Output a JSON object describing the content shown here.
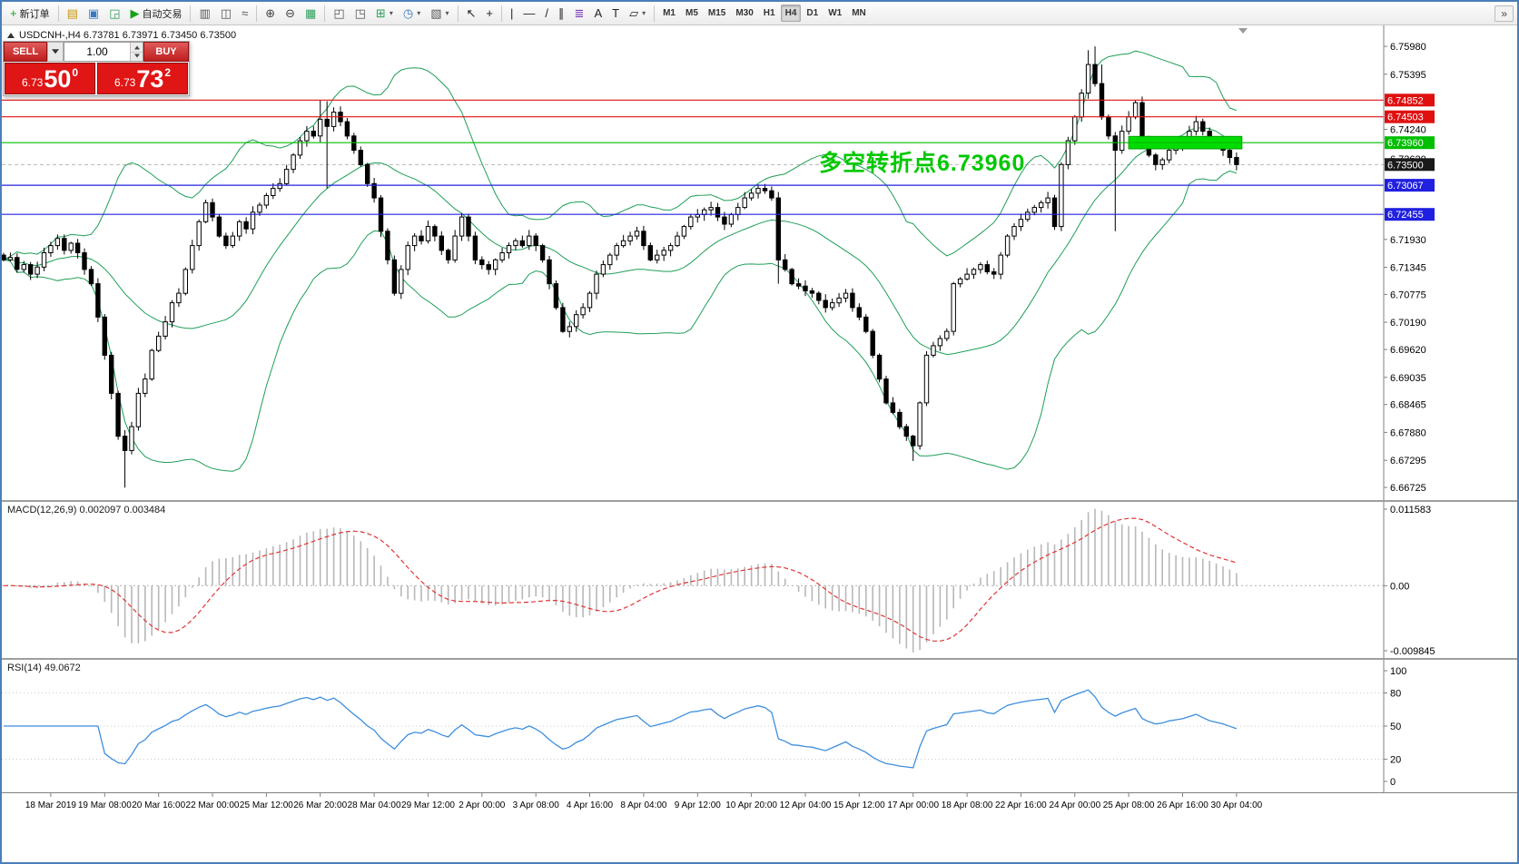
{
  "toolbar": {
    "groups": [
      {
        "items": [
          {
            "name": "new-order-button",
            "glyph": "+",
            "glyph_color": "#18A018",
            "label": "新订单"
          }
        ]
      },
      {
        "items": [
          {
            "name": "market-watch-button",
            "glyph": "▤",
            "glyph_color": "#C8960C"
          },
          {
            "name": "navigator-button",
            "glyph": "▣",
            "glyph_color": "#3A77C2"
          },
          {
            "name": "terminal-button",
            "glyph": "◲",
            "glyph_color": "#2E9E5B"
          },
          {
            "name": "autotrading-button",
            "glyph": "▶",
            "glyph_color": "#18A018",
            "label": "自动交易"
          }
        ]
      },
      {
        "items": [
          {
            "name": "bar-chart-button",
            "glyph": "▥",
            "glyph_color": "#555555"
          },
          {
            "name": "candlestick-chart-button",
            "glyph": "◫",
            "glyph_color": "#555555"
          },
          {
            "name": "line-chart-button",
            "glyph": "≈",
            "glyph_color": "#555555"
          }
        ]
      },
      {
        "items": [
          {
            "name": "zoom-in-button",
            "glyph": "⊕",
            "glyph_color": "#444444"
          },
          {
            "name": "zoom-out-button",
            "glyph": "⊖",
            "glyph_color": "#444444"
          },
          {
            "name": "grid-button",
            "glyph": "▦",
            "glyph_color": "#2E9E5B"
          }
        ]
      },
      {
        "items": [
          {
            "name": "tile-windows-button",
            "glyph": "◰",
            "glyph_color": "#555555"
          },
          {
            "name": "cascade-windows-button",
            "glyph": "◳",
            "glyph_color": "#555555"
          },
          {
            "name": "new-chart-button",
            "glyph": "⊞",
            "glyph_color": "#2E9E5B",
            "caret": true
          },
          {
            "name": "profiles-button",
            "glyph": "◷",
            "glyph_color": "#3A77C2",
            "caret": true
          },
          {
            "name": "templates-button",
            "glyph": "▧",
            "glyph_color": "#555555",
            "caret": true
          }
        ]
      },
      {
        "items": [
          {
            "name": "cursor-button",
            "glyph": "↖",
            "glyph_color": "#222222"
          },
          {
            "name": "crosshair-button",
            "glyph": "+",
            "glyph_color": "#222222"
          }
        ]
      },
      {
        "items": [
          {
            "name": "vertical-line-button",
            "glyph": "|",
            "glyph_color": "#222222"
          },
          {
            "name": "horizontal-line-button",
            "glyph": "—",
            "glyph_color": "#222222"
          },
          {
            "name": "trendline-button",
            "glyph": "/",
            "glyph_color": "#222222"
          },
          {
            "name": "channel-button",
            "glyph": "∥",
            "glyph_color": "#222222"
          },
          {
            "name": "fibonacci-button",
            "glyph": "≣",
            "glyph_color": "#7A3BB5"
          },
          {
            "name": "text-button",
            "glyph": "A",
            "glyph_color": "#222222"
          },
          {
            "name": "label-button",
            "glyph": "T",
            "glyph_color": "#222222"
          },
          {
            "name": "shapes-button",
            "glyph": "▱",
            "glyph_color": "#222222",
            "caret": true
          }
        ]
      }
    ],
    "timeframes": {
      "items": [
        "M1",
        "M5",
        "M15",
        "M30",
        "H1",
        "H4",
        "D1",
        "W1",
        "MN"
      ],
      "active": "H4"
    },
    "overflow_glyph": "»"
  },
  "chart": {
    "symbol_info": "USDCNH-,H4  6.73781 6.73971 6.73450 6.73500",
    "annotation": {
      "text": "多空转折点6.73960",
      "color": "#00C800"
    },
    "hlines": [
      {
        "price": 6.74852,
        "color": "#E01010",
        "label": "6.74852"
      },
      {
        "price": 6.74503,
        "color": "#E01010",
        "label": "6.74503"
      },
      {
        "price": 6.7396,
        "color": "#00BE00",
        "label": "6.73960"
      },
      {
        "price": 6.73067,
        "color": "#2020E0",
        "label": "6.73067"
      },
      {
        "price": 6.72455,
        "color": "#2020E0",
        "label": "6.72455"
      }
    ],
    "zone": {
      "price_top": 6.7409,
      "price_bottom": 6.7383,
      "start_index": 167,
      "color": "#00DC00",
      "border": "#00A000"
    },
    "current_price": {
      "value": 6.735,
      "label": "6.73500",
      "bg": "#1a1a1a"
    },
    "scale_ticks": [
      "6.75980",
      "6.75395",
      "6.74240",
      "6.73620",
      "6.71930",
      "6.71345",
      "6.70775",
      "6.70190",
      "6.69620",
      "6.69035",
      "6.68465",
      "6.67880",
      "6.67295",
      "6.66725"
    ]
  },
  "trade": {
    "sell_label": "SELL",
    "buy_label": "BUY",
    "volume": "1.00",
    "sell_price_small": "6.73",
    "sell_price_big": "50",
    "sell_price_sup": "0",
    "buy_price_small": "6.73",
    "buy_price_big": "73",
    "buy_price_sup": "2"
  },
  "chart_data": [
    {
      "type": "candlestick",
      "symbol": "USDCNH",
      "timeframe": "H4",
      "ylim": [
        6.6646,
        6.7642
      ],
      "open_rule": "prev-close",
      "closes": [
        6.715,
        6.7155,
        6.713,
        6.714,
        6.712,
        6.7135,
        6.7165,
        6.718,
        6.7195,
        6.717,
        6.7185,
        6.7165,
        6.713,
        6.71,
        6.703,
        6.695,
        6.687,
        6.678,
        6.675,
        6.68,
        6.687,
        6.69,
        6.696,
        6.699,
        6.702,
        6.706,
        6.708,
        6.713,
        6.718,
        6.723,
        6.727,
        6.724,
        6.72,
        6.718,
        6.72,
        6.723,
        6.7215,
        6.725,
        6.7265,
        6.7285,
        6.73,
        6.731,
        6.734,
        6.737,
        6.74,
        6.742,
        6.741,
        6.7445,
        6.743,
        6.746,
        6.744,
        6.741,
        6.738,
        6.735,
        6.731,
        6.728,
        6.721,
        6.715,
        6.708,
        6.713,
        6.718,
        6.72,
        6.719,
        6.722,
        6.72,
        6.717,
        6.715,
        6.72,
        6.724,
        6.72,
        6.715,
        6.714,
        6.713,
        6.715,
        6.7165,
        6.718,
        6.719,
        6.718,
        6.72,
        6.718,
        6.715,
        6.71,
        6.705,
        6.7,
        6.701,
        6.7035,
        6.705,
        6.708,
        6.712,
        6.714,
        6.716,
        6.718,
        6.719,
        6.72,
        6.721,
        6.718,
        6.715,
        6.716,
        6.717,
        6.718,
        6.72,
        6.722,
        6.724,
        6.7245,
        6.7255,
        6.726,
        6.724,
        6.7225,
        6.7245,
        6.726,
        6.728,
        6.729,
        6.73,
        6.7295,
        6.728,
        6.715,
        6.713,
        6.71,
        6.7095,
        6.7085,
        6.708,
        6.7065,
        6.705,
        6.706,
        6.707,
        6.708,
        6.705,
        6.703,
        6.7,
        6.695,
        6.69,
        6.685,
        6.683,
        6.68,
        6.678,
        6.676,
        6.685,
        6.695,
        6.697,
        6.6985,
        6.7,
        6.71,
        6.711,
        6.712,
        6.713,
        6.714,
        6.7125,
        6.712,
        6.716,
        6.72,
        6.722,
        6.7235,
        6.725,
        6.726,
        6.727,
        6.728,
        6.722,
        6.735,
        6.74,
        6.745,
        6.75,
        6.756,
        6.752,
        6.745,
        6.741,
        6.738,
        6.742,
        6.745,
        6.748,
        6.74,
        6.737,
        6.735,
        6.736,
        6.738,
        6.739,
        6.74,
        6.742,
        6.744,
        6.742,
        6.74,
        6.739,
        6.738,
        6.7365,
        6.735
      ],
      "wick_overrides": {
        "18": {
          "low": 6.6672
        },
        "47": {
          "high": 6.7485
        },
        "48": {
          "high": 6.7483,
          "low": 6.73
        },
        "49": {
          "high": 6.747
        },
        "115": {
          "low": 6.71
        },
        "135": {
          "low": 6.6728
        },
        "161": {
          "high": 6.759
        },
        "162": {
          "high": 6.7598
        },
        "163": {
          "high": 6.756
        },
        "165": {
          "low": 6.721
        }
      },
      "indicators": {
        "bollinger": {
          "period": 20,
          "deviation": 2,
          "color": "#1E9E57"
        }
      },
      "time_labels": [
        "18 Mar 2019",
        "19 Mar 08:00",
        "20 Mar 16:00",
        "22 Mar 00:00",
        "25 Mar 12:00",
        "26 Mar 20:00",
        "28 Mar 04:00",
        "29 Mar 12:00",
        "2 Apr 00:00",
        "3 Apr 08:00",
        "4 Apr 16:00",
        "8 Apr 04:00",
        "9 Apr 12:00",
        "10 Apr 20:00",
        "12 Apr 04:00",
        "15 Apr 12:00",
        "17 Apr 00:00",
        "18 Apr 08:00",
        "22 Apr 16:00",
        "24 Apr 00:00",
        "25 Apr 08:00",
        "26 Apr 16:00",
        "30 Apr 04:00"
      ],
      "label_start_index": 7,
      "label_step": 8
    },
    {
      "type": "macd-histogram",
      "label": "MACD(12,26,9) 0.002097 0.003484",
      "params": [
        12,
        26,
        9
      ],
      "computed_from": "closes",
      "scale": {
        "max": 0.011583,
        "min": -0.009845,
        "ticks": [
          "0.011583",
          "0.00",
          "-0.009845"
        ]
      },
      "histogram_color": "#B8B8B8",
      "signal_color": "#E03535"
    },
    {
      "type": "line",
      "label": "RSI(14) 49.0672",
      "params": [
        14
      ],
      "computed_from": "closes",
      "color": "#3E8EDE",
      "scale": {
        "max": 100,
        "min": 0,
        "ticks": [
          "100",
          "80",
          "50",
          "20",
          "0"
        ],
        "levels": [
          80,
          50,
          20
        ]
      }
    }
  ]
}
